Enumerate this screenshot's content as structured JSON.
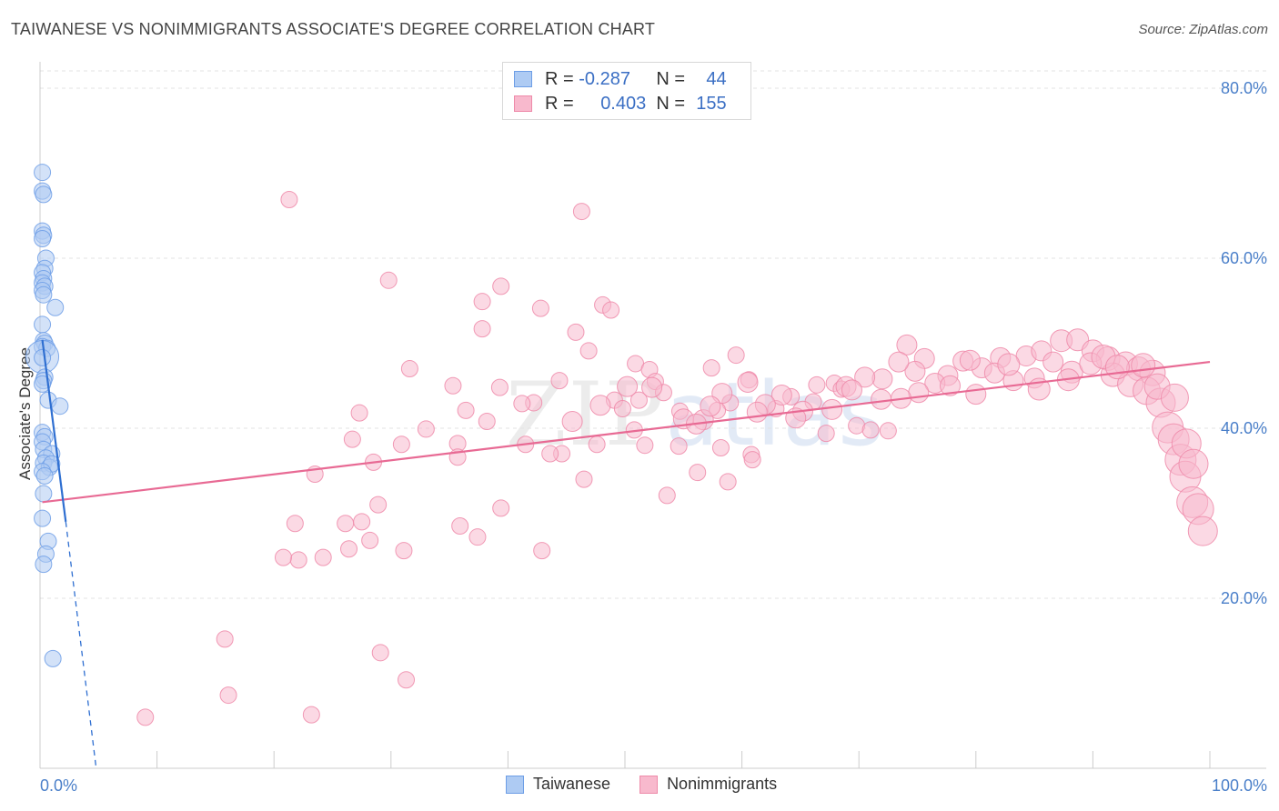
{
  "title": "TAIWANESE VS NONIMMIGRANTS ASSOCIATE'S DEGREE CORRELATION CHART",
  "source": "Source: ZipAtlas.com",
  "watermark": {
    "zip": "ZIP",
    "atlas": "atlas"
  },
  "legend": {
    "series": [
      {
        "r_label": "R =",
        "r_value": "-0.287",
        "n_label": "N =",
        "n_value": "44",
        "fill": "#aecbf3",
        "stroke": "#6d9ee6"
      },
      {
        "r_label": "R =",
        "r_value": "0.403",
        "n_label": "N =",
        "n_value": "155",
        "fill": "#f8b9cd",
        "stroke": "#ee8aa9"
      }
    ]
  },
  "chart_data": {
    "type": "scatter",
    "ylabel": "Associate's Degree",
    "xlabel": "",
    "xlim": [
      0,
      100
    ],
    "ylim": [
      0,
      80
    ],
    "x_tick_labels": [
      "0.0%",
      "100.0%"
    ],
    "y_ticks": [
      20,
      40,
      60,
      80
    ],
    "y_tick_labels": [
      "20.0%",
      "40.0%",
      "60.0%",
      "80.0%"
    ],
    "grid": true,
    "legend_position": "bottom-center",
    "series": [
      {
        "name": "Taiwanese",
        "color": "#6d9ee6",
        "fill": "#aecbf3",
        "trend": {
          "x0": 0.2,
          "y0": 50.4,
          "x1": 2.2,
          "y1": 29.0,
          "dashed_to": [
            4.8,
            0.0
          ]
        },
        "points": [
          [
            0.2,
            70.1
          ],
          [
            0.2,
            67.9
          ],
          [
            0.3,
            67.5
          ],
          [
            0.2,
            63.2
          ],
          [
            0.3,
            62.7
          ],
          [
            0.2,
            62.3
          ],
          [
            0.5,
            60.0
          ],
          [
            0.4,
            58.8
          ],
          [
            0.2,
            58.3
          ],
          [
            0.3,
            57.6
          ],
          [
            0.2,
            57.1
          ],
          [
            0.4,
            56.7
          ],
          [
            0.2,
            56.2
          ],
          [
            0.3,
            55.7
          ],
          [
            1.3,
            54.2
          ],
          [
            0.2,
            52.2
          ],
          [
            0.3,
            50.3
          ],
          [
            0.4,
            50.0
          ],
          [
            0.2,
            49.6
          ],
          [
            0.6,
            49.4
          ],
          [
            0.2,
            48.4
          ],
          [
            0.4,
            46.0
          ],
          [
            0.3,
            45.6
          ],
          [
            0.2,
            45.2
          ],
          [
            0.7,
            43.3
          ],
          [
            1.7,
            42.6
          ],
          [
            0.2,
            39.5
          ],
          [
            0.4,
            39.0
          ],
          [
            0.2,
            38.4
          ],
          [
            0.3,
            37.5
          ],
          [
            1.0,
            37.0
          ],
          [
            0.5,
            36.5
          ],
          [
            0.3,
            35.9
          ],
          [
            0.8,
            35.4
          ],
          [
            1.0,
            35.8
          ],
          [
            0.2,
            34.9
          ],
          [
            0.4,
            34.4
          ],
          [
            0.3,
            32.3
          ],
          [
            0.2,
            29.4
          ],
          [
            0.7,
            26.7
          ],
          [
            0.5,
            25.2
          ],
          [
            0.3,
            24.0
          ],
          [
            1.1,
            12.9
          ],
          [
            0.2,
            48.3
          ]
        ],
        "sizes": [
          9,
          9,
          9,
          9,
          9,
          9,
          9,
          9,
          9,
          9,
          9,
          9,
          9,
          9,
          9,
          9,
          9,
          9,
          9,
          9,
          18,
          9,
          9,
          9,
          9,
          9,
          9,
          9,
          9,
          9,
          9,
          9,
          9,
          9,
          9,
          9,
          9,
          9,
          9,
          9,
          9,
          9,
          9,
          9
        ]
      },
      {
        "name": "Nonimmigrants",
        "color": "#ee8aa9",
        "fill": "#f8b9cd",
        "trend": {
          "x0": 0.2,
          "y0": 31.3,
          "x1": 100,
          "y1": 47.8
        },
        "points": [
          [
            21.3,
            66.9
          ],
          [
            46.3,
            65.5
          ],
          [
            29.8,
            57.4
          ],
          [
            39.4,
            56.7
          ],
          [
            37.8,
            54.9
          ],
          [
            42.8,
            54.1
          ],
          [
            48.1,
            54.5
          ],
          [
            48.8,
            53.9
          ],
          [
            37.8,
            51.7
          ],
          [
            45.8,
            51.3
          ],
          [
            46.9,
            49.1
          ],
          [
            59.5,
            48.6
          ],
          [
            50.9,
            47.6
          ],
          [
            52.1,
            46.9
          ],
          [
            57.4,
            47.1
          ],
          [
            31.6,
            47.0
          ],
          [
            44.4,
            45.6
          ],
          [
            35.3,
            45.0
          ],
          [
            39.3,
            44.8
          ],
          [
            52.6,
            45.5
          ],
          [
            60.6,
            45.7
          ],
          [
            66.4,
            45.1
          ],
          [
            67.9,
            45.3
          ],
          [
            68.5,
            44.6
          ],
          [
            53.3,
            44.2
          ],
          [
            42.2,
            43.0
          ],
          [
            41.2,
            42.9
          ],
          [
            49.1,
            43.3
          ],
          [
            51.2,
            43.3
          ],
          [
            64.2,
            43.7
          ],
          [
            66.1,
            43.1
          ],
          [
            59.0,
            43.0
          ],
          [
            62.9,
            42.3
          ],
          [
            54.7,
            42.0
          ],
          [
            57.9,
            42.1
          ],
          [
            49.8,
            42.3
          ],
          [
            36.4,
            42.1
          ],
          [
            27.3,
            41.8
          ],
          [
            38.2,
            40.8
          ],
          [
            50.8,
            39.8
          ],
          [
            67.2,
            39.4
          ],
          [
            69.8,
            40.3
          ],
          [
            71.0,
            39.8
          ],
          [
            72.5,
            39.7
          ],
          [
            33.0,
            39.9
          ],
          [
            26.7,
            38.7
          ],
          [
            30.9,
            38.1
          ],
          [
            35.7,
            38.2
          ],
          [
            41.5,
            38.1
          ],
          [
            47.6,
            38.1
          ],
          [
            51.7,
            38.0
          ],
          [
            54.6,
            37.9
          ],
          [
            58.2,
            37.7
          ],
          [
            60.8,
            36.9
          ],
          [
            44.6,
            37.0
          ],
          [
            43.6,
            37.0
          ],
          [
            35.7,
            36.6
          ],
          [
            23.5,
            34.6
          ],
          [
            28.5,
            36.0
          ],
          [
            60.9,
            36.3
          ],
          [
            46.5,
            34.0
          ],
          [
            58.8,
            33.7
          ],
          [
            53.6,
            32.1
          ],
          [
            56.2,
            34.8
          ],
          [
            28.9,
            31.0
          ],
          [
            26.1,
            28.8
          ],
          [
            27.5,
            29.0
          ],
          [
            35.9,
            28.5
          ],
          [
            39.4,
            30.6
          ],
          [
            21.8,
            28.8
          ],
          [
            28.2,
            26.8
          ],
          [
            26.4,
            25.8
          ],
          [
            22.1,
            24.5
          ],
          [
            24.2,
            24.8
          ],
          [
            37.4,
            27.2
          ],
          [
            31.1,
            25.6
          ],
          [
            20.8,
            24.8
          ],
          [
            42.9,
            25.6
          ],
          [
            15.8,
            15.2
          ],
          [
            29.1,
            13.6
          ],
          [
            31.3,
            10.4
          ],
          [
            16.1,
            8.6
          ],
          [
            23.2,
            6.3
          ],
          [
            9.0,
            6.0
          ],
          [
            74.1,
            49.8
          ],
          [
            75.6,
            48.2
          ],
          [
            78.9,
            47.9
          ],
          [
            80.5,
            47.1
          ],
          [
            82.1,
            48.3
          ],
          [
            84.3,
            48.5
          ],
          [
            85.6,
            49.1
          ],
          [
            87.3,
            50.3
          ],
          [
            88.7,
            50.4
          ],
          [
            90.0,
            49.1
          ],
          [
            91.3,
            48.2
          ],
          [
            92.8,
            47.6
          ],
          [
            93.9,
            47.0
          ],
          [
            95.1,
            46.5
          ],
          [
            79.5,
            48.0
          ],
          [
            81.6,
            46.5
          ],
          [
            83.2,
            45.6
          ],
          [
            85.0,
            45.9
          ],
          [
            86.6,
            47.8
          ],
          [
            88.2,
            46.6
          ],
          [
            89.8,
            47.6
          ],
          [
            91.7,
            46.3
          ],
          [
            93.2,
            45.2
          ],
          [
            94.6,
            44.4
          ],
          [
            95.8,
            43.0
          ],
          [
            96.4,
            40.1
          ],
          [
            96.9,
            38.7
          ],
          [
            97.5,
            36.3
          ],
          [
            97.9,
            34.3
          ],
          [
            98.5,
            31.3
          ],
          [
            99.0,
            30.5
          ],
          [
            99.4,
            27.9
          ],
          [
            77.6,
            46.2
          ],
          [
            76.5,
            45.3
          ],
          [
            74.8,
            46.7
          ],
          [
            73.4,
            47.8
          ],
          [
            72.0,
            45.8
          ],
          [
            70.5,
            46.0
          ],
          [
            68.9,
            44.9
          ],
          [
            67.7,
            42.2
          ],
          [
            65.2,
            42.0
          ],
          [
            63.4,
            43.9
          ],
          [
            62.0,
            42.8
          ],
          [
            60.5,
            45.4
          ],
          [
            58.3,
            44.1
          ],
          [
            56.7,
            41.0
          ],
          [
            55.0,
            41.1
          ],
          [
            52.3,
            44.8
          ],
          [
            50.2,
            44.9
          ],
          [
            47.9,
            42.7
          ],
          [
            45.5,
            40.8
          ],
          [
            71.9,
            43.4
          ],
          [
            69.4,
            44.5
          ],
          [
            64.6,
            41.2
          ],
          [
            61.3,
            41.9
          ],
          [
            57.3,
            42.6
          ],
          [
            56.1,
            40.5
          ],
          [
            85.4,
            44.6
          ],
          [
            87.9,
            45.7
          ],
          [
            82.8,
            47.5
          ],
          [
            80.0,
            44.0
          ],
          [
            77.8,
            45.0
          ],
          [
            75.1,
            44.2
          ],
          [
            73.6,
            43.5
          ],
          [
            90.9,
            48.4
          ],
          [
            92.1,
            47.2
          ],
          [
            94.3,
            47.4
          ],
          [
            95.5,
            44.9
          ],
          [
            97.0,
            43.6
          ],
          [
            98.0,
            38.2
          ],
          [
            98.6,
            35.8
          ]
        ],
        "sizes": [
          9,
          9,
          9,
          9,
          9,
          9,
          9,
          9,
          9,
          9,
          9,
          9,
          9,
          9,
          9,
          9,
          9,
          9,
          9,
          9,
          9,
          9,
          9,
          9,
          9,
          9,
          9,
          9,
          9,
          9,
          9,
          9,
          9,
          9,
          9,
          9,
          9,
          9,
          9,
          9,
          9,
          9,
          9,
          9,
          9,
          9,
          9,
          9,
          9,
          9,
          9,
          9,
          9,
          9,
          9,
          9,
          9,
          9,
          9,
          9,
          9,
          9,
          9,
          9,
          9,
          9,
          9,
          9,
          9,
          9,
          9,
          9,
          9,
          9,
          9,
          9,
          9,
          9,
          9,
          9,
          9,
          9,
          9,
          9,
          11,
          11,
          11,
          11,
          11,
          11,
          11,
          12,
          12,
          12,
          13,
          13,
          13,
          14,
          11,
          11,
          11,
          11,
          11,
          12,
          12,
          13,
          14,
          15,
          16,
          17,
          17,
          17,
          17,
          17,
          17,
          16,
          11,
          11,
          11,
          11,
          11,
          11,
          11,
          11,
          11,
          11,
          11,
          11,
          11,
          11,
          11,
          11,
          11,
          11,
          11,
          11,
          11,
          11,
          11,
          11,
          11,
          12,
          12,
          12,
          11,
          11,
          11,
          11,
          13,
          13,
          13,
          14,
          15,
          16,
          16
        ]
      }
    ]
  }
}
